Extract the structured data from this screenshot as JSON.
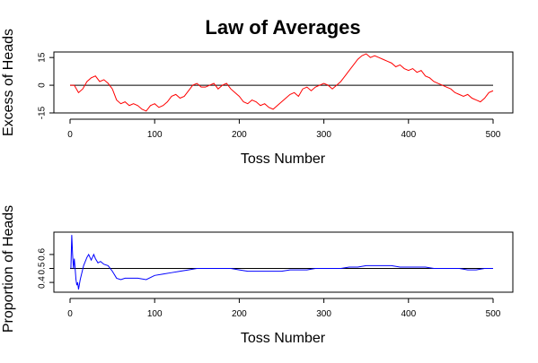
{
  "chart_data": [
    {
      "type": "line",
      "title": "Law of Averages",
      "xlabel": "Toss Number",
      "ylabel": "Excess of Heads",
      "xlim": [
        0,
        500
      ],
      "ylim": [
        -15,
        18
      ],
      "xticks": [
        0,
        100,
        200,
        300,
        400,
        500
      ],
      "xtick_labels": [
        "0",
        "100",
        "200",
        "300",
        "400",
        "500"
      ],
      "yticks": [
        -15,
        0,
        15
      ],
      "ytick_labels": [
        "-15",
        "0",
        "15"
      ],
      "reference_line": 0,
      "grid": false,
      "line_color": "#ff0000",
      "series": [
        {
          "x": [
            0,
            5,
            10,
            15,
            20,
            25,
            30,
            35,
            40,
            45,
            50,
            55,
            60,
            65,
            70,
            75,
            80,
            85,
            90,
            95,
            100,
            105,
            110,
            115,
            120,
            125,
            130,
            135,
            140,
            145,
            150,
            155,
            160,
            165,
            170,
            175,
            180,
            185,
            190,
            195,
            200,
            205,
            210,
            215,
            220,
            225,
            230,
            235,
            240,
            245,
            250,
            255,
            260,
            265,
            270,
            275,
            280,
            285,
            290,
            295,
            300,
            305,
            310,
            315,
            320,
            325,
            330,
            335,
            340,
            345,
            350,
            355,
            360,
            365,
            370,
            375,
            380,
            385,
            390,
            395,
            400,
            405,
            410,
            415,
            420,
            425,
            430,
            435,
            440,
            445,
            450,
            455,
            460,
            465,
            470,
            475,
            480,
            485,
            490,
            495,
            500
          ],
          "values": [
            0,
            0,
            -4,
            -2,
            2,
            4,
            5,
            2,
            3,
            1,
            -2,
            -8,
            -10,
            -9,
            -11,
            -10,
            -11,
            -13,
            -14,
            -11,
            -10,
            -12,
            -11,
            -9,
            -6,
            -5,
            -7,
            -6,
            -3,
            0,
            1,
            -1,
            -1,
            0,
            1,
            -2,
            0,
            1,
            -2,
            -4,
            -6,
            -9,
            -10,
            -8,
            -9,
            -11,
            -10,
            -12,
            -13,
            -11,
            -9,
            -7,
            -5,
            -4,
            -6,
            -2,
            -1,
            -3,
            -1,
            0,
            1,
            0,
            -2,
            0,
            2,
            5,
            8,
            11,
            14,
            16,
            17,
            15,
            16,
            15,
            14,
            13,
            12,
            10,
            11,
            9,
            8,
            9,
            7,
            8,
            5,
            4,
            2,
            1,
            0,
            -1,
            -2,
            -4,
            -5,
            -6,
            -5,
            -7,
            -8,
            -9,
            -7,
            -4,
            -3
          ]
        }
      ]
    },
    {
      "type": "line",
      "title": "",
      "xlabel": "Toss Number",
      "ylabel": "Proportion of Heads",
      "xlim": [
        0,
        500
      ],
      "ylim": [
        0.33,
        0.76
      ],
      "xticks": [
        0,
        100,
        200,
        300,
        400,
        500
      ],
      "xtick_labels": [
        "0",
        "100",
        "200",
        "300",
        "400",
        "500"
      ],
      "yticks": [
        0.4,
        0.5,
        0.6
      ],
      "ytick_labels": [
        "0.4",
        "0.5",
        "0.6"
      ],
      "reference_line": 0.5,
      "grid": false,
      "line_color": "#0000ff",
      "series": [
        {
          "x": [
            1,
            2,
            3,
            4,
            5,
            6,
            7,
            8,
            9,
            10,
            12,
            14,
            16,
            18,
            20,
            22,
            25,
            28,
            30,
            33,
            36,
            40,
            45,
            50,
            55,
            60,
            65,
            70,
            80,
            90,
            100,
            110,
            120,
            130,
            140,
            150,
            160,
            170,
            180,
            190,
            200,
            210,
            220,
            230,
            240,
            250,
            260,
            270,
            280,
            290,
            300,
            310,
            320,
            330,
            340,
            350,
            360,
            370,
            380,
            390,
            400,
            410,
            420,
            430,
            440,
            450,
            460,
            470,
            480,
            490,
            500
          ],
          "values": [
            0.5,
            0.74,
            0.6,
            0.5,
            0.57,
            0.5,
            0.42,
            0.38,
            0.4,
            0.35,
            0.42,
            0.47,
            0.52,
            0.55,
            0.58,
            0.6,
            0.56,
            0.6,
            0.57,
            0.54,
            0.55,
            0.53,
            0.52,
            0.48,
            0.43,
            0.42,
            0.43,
            0.43,
            0.43,
            0.42,
            0.45,
            0.46,
            0.47,
            0.48,
            0.49,
            0.5,
            0.5,
            0.5,
            0.5,
            0.5,
            0.49,
            0.48,
            0.48,
            0.48,
            0.48,
            0.48,
            0.49,
            0.49,
            0.49,
            0.5,
            0.5,
            0.5,
            0.5,
            0.51,
            0.51,
            0.52,
            0.52,
            0.52,
            0.52,
            0.51,
            0.51,
            0.51,
            0.51,
            0.5,
            0.5,
            0.5,
            0.5,
            0.49,
            0.49,
            0.5,
            0.5
          ]
        }
      ]
    }
  ]
}
